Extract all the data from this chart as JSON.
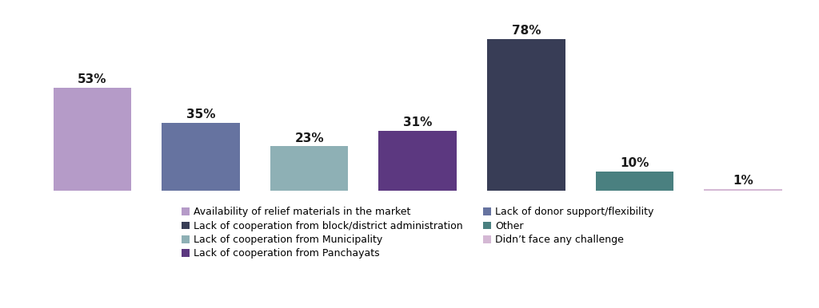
{
  "values": [
    53,
    35,
    23,
    31,
    78,
    10,
    1
  ],
  "bar_colors": [
    "#b59bc8",
    "#6673a0",
    "#8eb0b5",
    "#5c3880",
    "#383d56",
    "#4a8080",
    "#d4b8d4"
  ],
  "legend_labels_ordered": [
    "Availability of relief materials in the market",
    "Lack of cooperation from block/district administration",
    "Lack of cooperation from Municipality",
    "Lack of cooperation from Panchayats",
    "Lack of donor support/flexibility",
    "Other",
    "Didn’t face any challenge"
  ],
  "legend_colors_ordered": [
    "#b59bc8",
    "#383d56",
    "#8eb0b5",
    "#5c3880",
    "#6673a0",
    "#4a8080",
    "#d4b8d4"
  ],
  "background_color": "#ffffff",
  "bar_width": 0.72,
  "label_fontsize": 11,
  "legend_fontsize": 9,
  "ylim_max": 90
}
